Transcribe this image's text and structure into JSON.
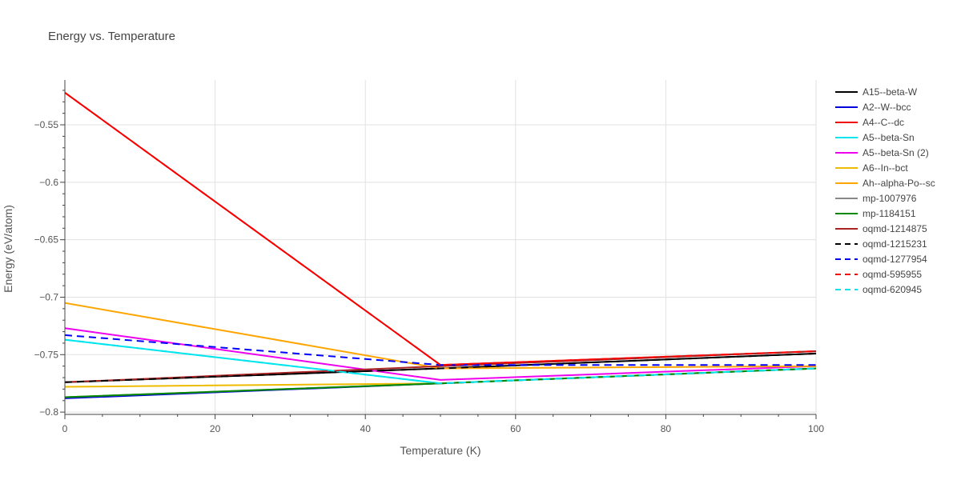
{
  "chart_data": {
    "type": "line",
    "title": "Energy vs. Temperature",
    "xlabel": "Temperature (K)",
    "ylabel": "Energy (eV/atom)",
    "xlim": [
      0,
      100
    ],
    "ylim": [
      -0.802,
      -0.511
    ],
    "xticks": [
      0,
      20,
      40,
      60,
      80,
      100
    ],
    "xtick_labels": [
      "0",
      "20",
      "40",
      "60",
      "80",
      "100"
    ],
    "yticks": [
      -0.8,
      -0.75,
      -0.7,
      -0.65,
      -0.6,
      -0.55
    ],
    "ytick_labels": [
      "−0.8",
      "−0.75",
      "−0.7",
      "−0.65",
      "−0.6",
      "−0.55"
    ],
    "grid": true,
    "legend_position": "right",
    "x": [
      0,
      50,
      100
    ],
    "series": [
      {
        "name": "A15--beta-W",
        "color": "#000000",
        "dash": "solid",
        "values": [
          -0.774,
          -0.762,
          -0.749
        ]
      },
      {
        "name": "A2--W--bcc",
        "color": "#0000dd",
        "dash": "solid",
        "values": [
          -0.788,
          -0.775,
          -0.762
        ]
      },
      {
        "name": "A4--C--dc",
        "color": "#ee0000",
        "dash": "solid",
        "values": [
          -0.522,
          -0.759,
          -0.747
        ]
      },
      {
        "name": "A5--beta-Sn",
        "color": "#00e5ee",
        "dash": "solid",
        "values": [
          -0.737,
          -0.775,
          -0.762
        ]
      },
      {
        "name": "A5--beta-Sn (2)",
        "color": "#ee00ee",
        "dash": "solid",
        "values": [
          -0.727,
          -0.772,
          -0.76
        ]
      },
      {
        "name": "A6--In--bct",
        "color": "#eebb00",
        "dash": "solid",
        "values": [
          -0.778,
          -0.775,
          -0.762
        ]
      },
      {
        "name": "Ah--alpha-Po--sc",
        "color": "#ffa500",
        "dash": "solid",
        "values": [
          -0.705,
          -0.762,
          -0.76
        ]
      },
      {
        "name": "mp-1007976",
        "color": "#888888",
        "dash": "solid",
        "values": [
          -0.787,
          -0.775,
          -0.762
        ]
      },
      {
        "name": "mp-1184151",
        "color": "#008800",
        "dash": "solid",
        "values": [
          -0.787,
          -0.775,
          -0.762
        ]
      },
      {
        "name": "oqmd-1214875",
        "color": "#aa2222",
        "dash": "solid",
        "values": [
          -0.774,
          -0.76,
          -0.747
        ]
      },
      {
        "name": "oqmd-1215231",
        "color": "#000000",
        "dash": "dash",
        "values": [
          -0.774,
          -0.762,
          -0.749
        ]
      },
      {
        "name": "oqmd-1277954",
        "color": "#0000ff",
        "dash": "dash",
        "values": [
          -0.733,
          -0.759,
          -0.759
        ]
      },
      {
        "name": "oqmd-595955",
        "color": "#ff0000",
        "dash": "dash",
        "values": [
          -0.522,
          -0.759,
          -0.747
        ]
      },
      {
        "name": "oqmd-620945",
        "color": "#00e5ee",
        "dash": "dash",
        "values": [
          -0.737,
          -0.775,
          -0.762
        ]
      }
    ]
  }
}
